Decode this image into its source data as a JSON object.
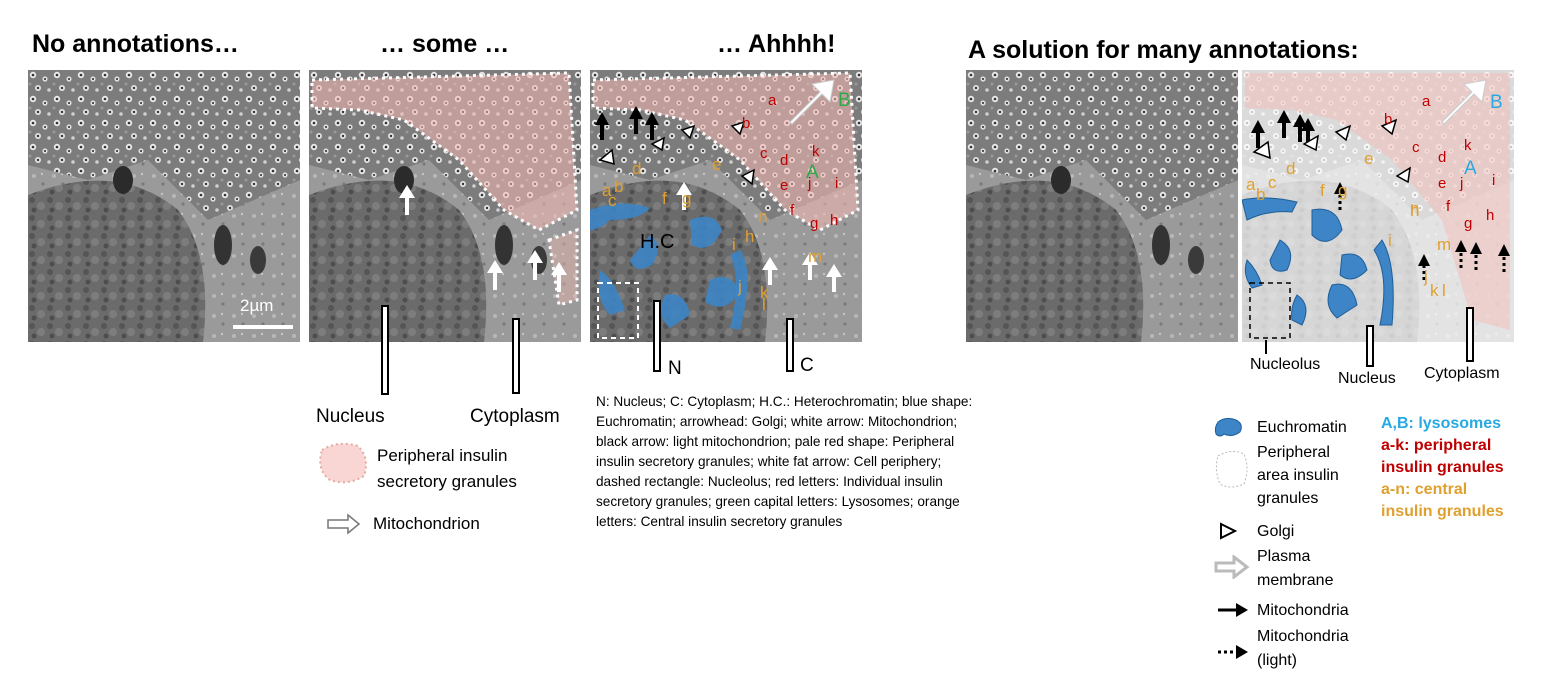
{
  "titles": {
    "panel1": "No annotations…",
    "panel2": "… some …",
    "panel3": "… Ahhhh!",
    "panel4": "A solution for many annotations:"
  },
  "scale_bar": "2µm",
  "panel2_labels": {
    "nucleus": "Nucleus",
    "cytoplasm": "Cytoplasm"
  },
  "panel2_legend": {
    "peripheral": "Peripheral insulin secretory granules",
    "peripheral_line1": "Peripheral insulin",
    "peripheral_line2": "secretory granules",
    "mito": "Mitochondrion"
  },
  "panel3_labels": {
    "n": "N",
    "c": "C",
    "hc": "H.C"
  },
  "panel3_letters": {
    "red": [
      "a",
      "b",
      "c",
      "d",
      "e",
      "f",
      "g",
      "h",
      "i",
      "j",
      "k"
    ],
    "orange": [
      "a",
      "b",
      "c",
      "d",
      "e",
      "f",
      "g",
      "h",
      "i",
      "j",
      "k",
      "l",
      "m",
      "n"
    ],
    "green": [
      "A",
      "B"
    ]
  },
  "panel3_legend": "N: Nucleus; C: Cytoplasm; H.C.: Heterochromatin; blue shape: Euchromatin; arrowhead: Golgi; white arrow: Mitochondrion; black arrow: light mitochondrion; pale red shape: Peripheral insulin secretory granules; white fat arrow: Cell periphery; dashed rectangle: Nucleolus; red letters: Individual insulin secretory granules; green capital letters: Lysosomes; orange letters: Central insulin secretory granules",
  "panel4_labels": {
    "nucleolus": "Nucleolus",
    "nucleus": "Nucleus",
    "cytoplasm": "Cytoplasm"
  },
  "panel4_letters": {
    "red": [
      "a",
      "b",
      "c",
      "d",
      "e",
      "f",
      "g",
      "h",
      "i",
      "j",
      "k"
    ],
    "orange": [
      "a",
      "b",
      "c",
      "d",
      "e",
      "f",
      "g",
      "h",
      "i",
      "j",
      "k",
      "l",
      "m",
      "n"
    ],
    "blue": [
      "A",
      "B"
    ]
  },
  "panel4_legend": {
    "euchromatin": "Euchromatin",
    "peripheral": "Peripheral area insulin granules",
    "peripheral_lines": [
      "Peripheral",
      "area insulin",
      "granules"
    ],
    "golgi": "Golgi",
    "plasma": "Plasma membrane",
    "plasma_lines": [
      "Plasma",
      "membrane"
    ],
    "mito": "Mitochondria",
    "mito_light": "Mitochondria (light)",
    "mito_light_lines": [
      "Mitochondria",
      "(light)"
    ],
    "lysosomes": "A,B: lysosomes",
    "peripheral_granules": "a-k: peripheral insulin granules",
    "peripheral_granules_lines": [
      "a-k: peripheral",
      "insulin granules"
    ],
    "central_granules": "a-n: central insulin granules",
    "central_granules_lines": [
      "a-n: central",
      "insulin granules"
    ]
  },
  "colors": {
    "euchromatin": "#3d85c6",
    "peripheral_area": "#f4c7c3",
    "red_letters": "#c00000",
    "orange_letters": "#e0a030",
    "green_letters": "#2ea84a",
    "blue_letters": "#27a9e1"
  }
}
